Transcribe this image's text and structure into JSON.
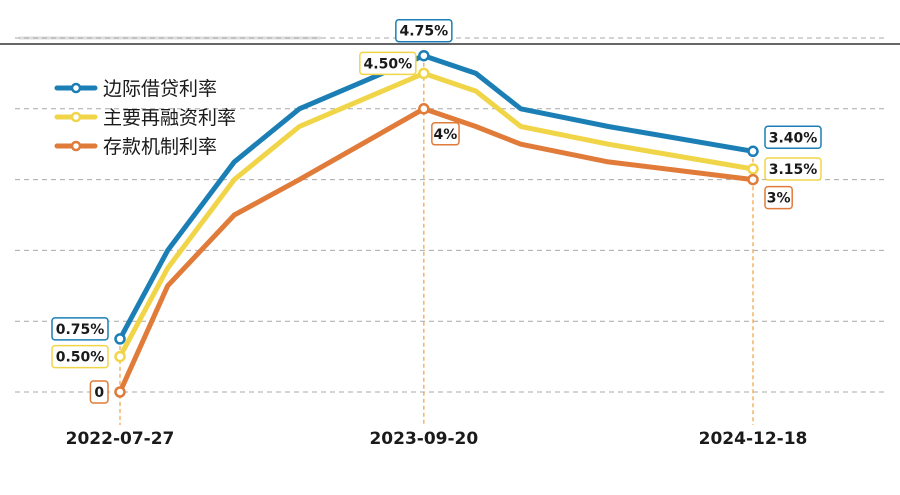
{
  "chart_data": {
    "type": "line",
    "x": [
      "2022-07-27",
      "2022-10-01",
      "2023-01-01",
      "2023-04-01",
      "2023-09-20",
      "2023-12-01",
      "2024-02-01",
      "2024-06-01",
      "2024-12-18"
    ],
    "x_tick_labels": [
      "2022-07-27",
      "2023-09-20",
      "2024-12-18"
    ],
    "series": [
      {
        "name": "边际借贷利率",
        "color": "#1b7fb5",
        "values": [
          0.75,
          2.0,
          3.25,
          4.0,
          4.75,
          4.5,
          4.0,
          3.75,
          3.4
        ],
        "labels": [
          {
            "index": 0,
            "text": "0.75%"
          },
          {
            "index": 4,
            "text": "4.75%"
          },
          {
            "index": 8,
            "text": "3.40%"
          }
        ]
      },
      {
        "name": "主要再融资利率",
        "color": "#f1d548",
        "values": [
          0.5,
          1.75,
          3.0,
          3.75,
          4.5,
          4.25,
          3.75,
          3.5,
          3.15
        ],
        "labels": [
          {
            "index": 0,
            "text": "0.50%"
          },
          {
            "index": 4,
            "text": "4.50%"
          },
          {
            "index": 8,
            "text": "3.15%"
          }
        ]
      },
      {
        "name": "存款机制利率",
        "color": "#e07b39",
        "values": [
          0,
          1.5,
          2.5,
          3.0,
          4.0,
          3.75,
          3.5,
          3.25,
          3.0
        ],
        "labels": [
          {
            "index": 0,
            "text": "0"
          },
          {
            "index": 4,
            "text": "4%"
          },
          {
            "index": 8,
            "text": "3%"
          }
        ]
      }
    ],
    "ylim": [
      0,
      5
    ],
    "grid": true,
    "legend_position": "top-left",
    "title": "",
    "xlabel": "",
    "ylabel": ""
  }
}
